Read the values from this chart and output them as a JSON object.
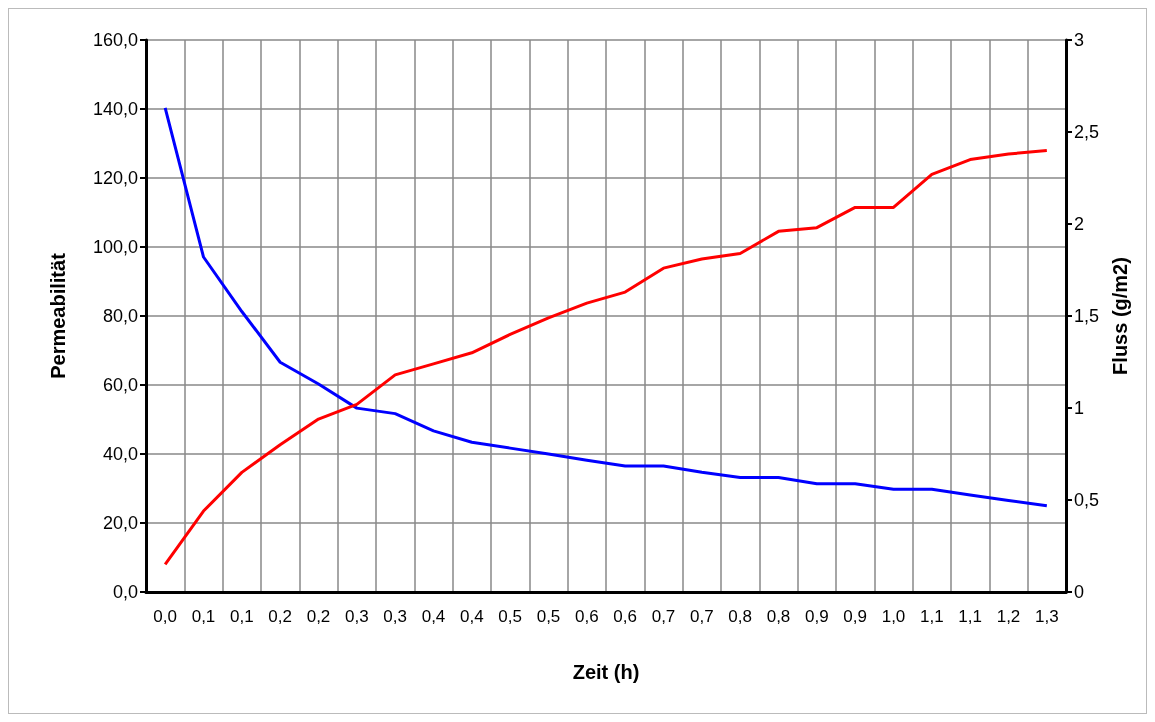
{
  "chart_data": {
    "type": "line",
    "xlabel": "Zeit (h)",
    "ylabel": "Permeabilität",
    "y2label": "Fluss (g/m2)",
    "categories": [
      "0,0",
      "0,1",
      "0,1",
      "0,2",
      "0,2",
      "0,3",
      "0,3",
      "0,4",
      "0,4",
      "0,5",
      "0,5",
      "0,6",
      "0,6",
      "0,7",
      "0,7",
      "0,8",
      "0,8",
      "0,9",
      "0,9",
      "1,0",
      "1,1",
      "1,1",
      "1,2",
      "1,3"
    ],
    "series": [
      {
        "color": "#0000ff",
        "values": [
          140.3,
          97.1,
          81.3,
          66.6,
          60.3,
          53.3,
          51.7,
          46.7,
          43.4,
          41.7,
          40.0,
          38.2,
          36.5,
          36.5,
          34.7,
          33.2,
          33.2,
          31.4,
          31.4,
          29.8,
          29.8,
          28.1,
          26.5,
          25.0
        ]
      },
      {
        "color": "#ff0000",
        "axis": "y2",
        "values": [
          0.15,
          0.44,
          0.65,
          0.8,
          0.94,
          1.02,
          1.18,
          1.24,
          1.3,
          1.4,
          1.49,
          1.57,
          1.63,
          1.76,
          1.81,
          1.84,
          1.96,
          1.98,
          2.09,
          2.09,
          2.27,
          2.35,
          2.38,
          2.4
        ]
      }
    ],
    "ylim": [
      0,
      160
    ],
    "yticks": [
      {
        "value": 0,
        "label": "0,0"
      },
      {
        "value": 20,
        "label": "20,0"
      },
      {
        "value": 40,
        "label": "40,0"
      },
      {
        "value": 60,
        "label": "60,0"
      },
      {
        "value": 80,
        "label": "80,0"
      },
      {
        "value": 100,
        "label": "100,0"
      },
      {
        "value": 120,
        "label": "120,0"
      },
      {
        "value": 140,
        "label": "140,0"
      },
      {
        "value": 160,
        "label": "160,0"
      }
    ],
    "y2lim": [
      0,
      3
    ],
    "y2ticks": [
      0,
      {
        "value": 0.5,
        "label": "0,5"
      },
      1,
      {
        "value": 1.5,
        "label": "1,5"
      },
      2,
      {
        "value": 2.5,
        "label": "2,5"
      },
      3
    ],
    "grid": true,
    "marker": "none",
    "line_style": "solid"
  }
}
